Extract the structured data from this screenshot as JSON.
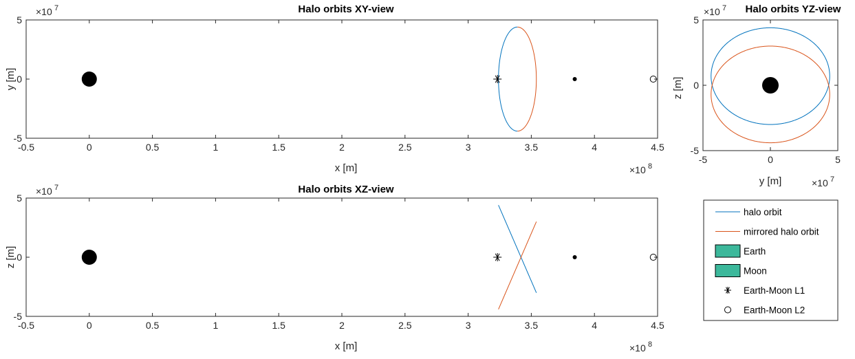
{
  "colors": {
    "halo": "#0072BD",
    "mirrored": "#D95319",
    "body_fill": "#000000",
    "legend_patch": "#3CB89B"
  },
  "chart_data": [
    {
      "id": "xy",
      "type": "line",
      "title": "Halo orbits XY-view",
      "xlabel": "x [m]",
      "ylabel": "y [m]",
      "xlim": [
        -0.5,
        4.5
      ],
      "ylim": [
        -5,
        5
      ],
      "xticks": [
        "-0.5",
        "0",
        "0.5",
        "1",
        "1.5",
        "2",
        "2.5",
        "3",
        "3.5",
        "4",
        "4.5"
      ],
      "yticks": [
        "-5",
        "0",
        "5"
      ],
      "x_exponent": "10^8",
      "y_exponent": "10^7",
      "grid": false
    },
    {
      "id": "xz",
      "type": "line",
      "title": "Halo orbits XZ-view",
      "xlabel": "x [m]",
      "ylabel": "z [m]",
      "xlim": [
        -0.5,
        4.5
      ],
      "ylim": [
        -5,
        5
      ],
      "xticks": [
        "-0.5",
        "0",
        "0.5",
        "1",
        "1.5",
        "2",
        "2.5",
        "3",
        "3.5",
        "4",
        "4.5"
      ],
      "yticks": [
        "-5",
        "0",
        "5"
      ],
      "x_exponent": "10^8",
      "y_exponent": "10^7",
      "grid": false
    },
    {
      "id": "yz",
      "type": "line",
      "title": "Halo orbits YZ-view",
      "xlabel": "y [m]",
      "ylabel": "z [m]",
      "xlim": [
        -5,
        5
      ],
      "ylim": [
        -5,
        5
      ],
      "xticks": [
        "-5",
        "0",
        "5"
      ],
      "yticks": [
        "-5",
        "0",
        "5"
      ],
      "x_exponent": "10^7",
      "y_exponent": "10^7",
      "grid": false
    }
  ],
  "legend": {
    "placement": "right",
    "entries": [
      {
        "label": "halo orbit",
        "kind": "line",
        "color": "#0072BD"
      },
      {
        "label": "mirrored halo orbit",
        "kind": "line",
        "color": "#D95319"
      },
      {
        "label": "Earth",
        "kind": "patch",
        "color": "#3CB89B"
      },
      {
        "label": "Moon",
        "kind": "patch",
        "color": "#3CB89B"
      },
      {
        "label": "Earth-Moon L1",
        "kind": "asterisk",
        "color": "#000000"
      },
      {
        "label": "Earth-Moon L2",
        "kind": "circle",
        "color": "#000000"
      }
    ]
  },
  "objects": {
    "earth": {
      "x": 0,
      "y": 0,
      "z": 0
    },
    "moon": {
      "x": 3.844,
      "y": 0,
      "z": 0
    },
    "L1": {
      "x": 3.232,
      "y": 0,
      "z": 0
    },
    "L2": {
      "x": 4.466,
      "y": 0,
      "z": 0
    }
  },
  "halo": {
    "x_center": 3.39,
    "x_amplitude": 0.15,
    "y_amplitude": 4.4,
    "z_center": 0,
    "z_amplitude": 3.7,
    "z_offset": 0.7
  }
}
